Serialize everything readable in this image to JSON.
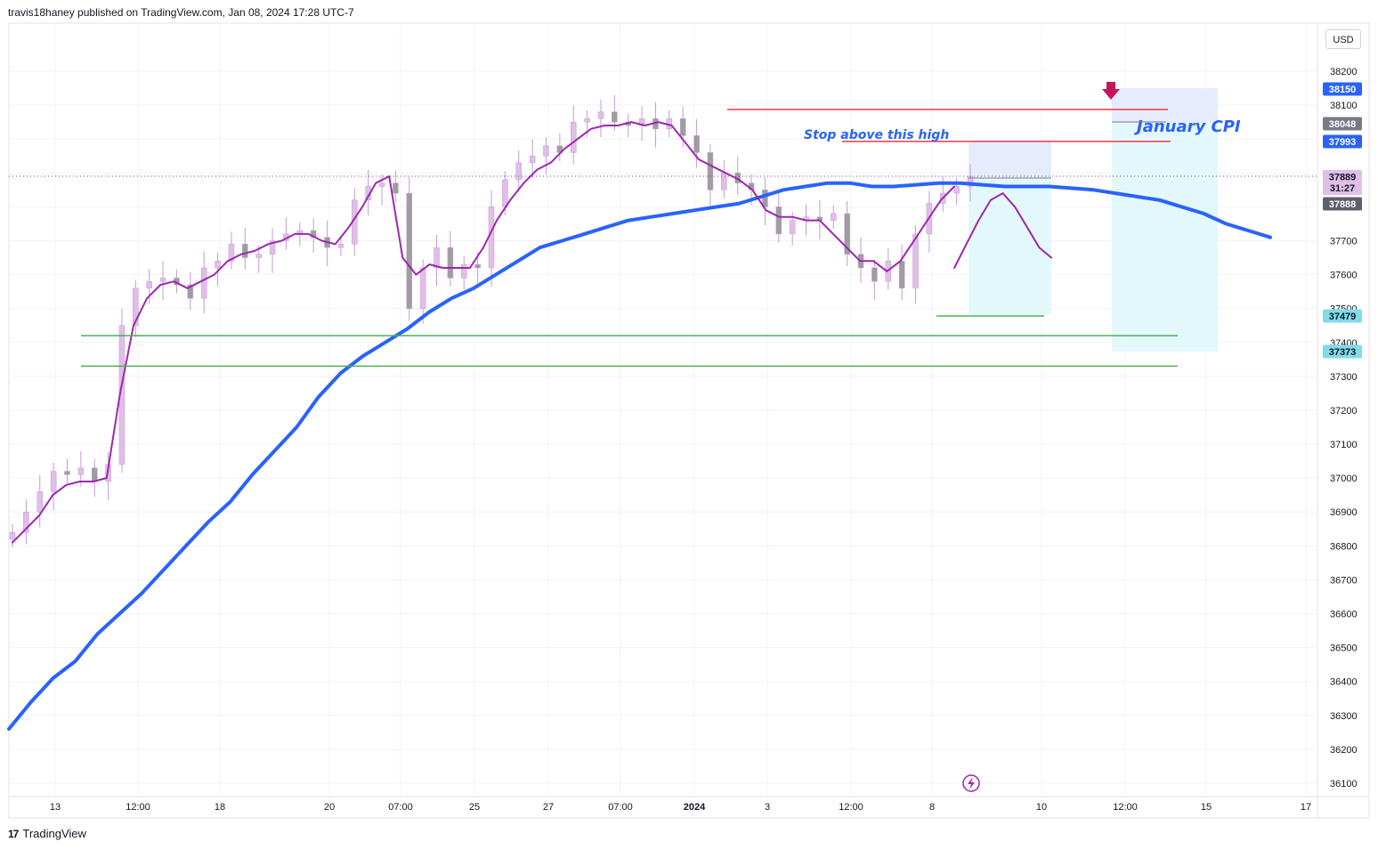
{
  "header": {
    "text": "travis18haney published on TradingView.com, Jan 08, 2024 17:28 UTC-7"
  },
  "currency_button": "USD",
  "footer": {
    "logo_mark": "17",
    "brand": "TradingView"
  },
  "annotations": {
    "stop_text": "Stop above this high",
    "event_text": "January CPI"
  },
  "colors": {
    "sma_blue": "#2962ff",
    "ema_purple": "#9c27b0",
    "candle": "#c39bd3",
    "red_level": "#f23645",
    "green_level": "#4caf50",
    "projection_fill": "#e0f7fa",
    "stop_fill": "#e3eafd",
    "arrow": "#c2185b"
  },
  "chart_data": {
    "type": "line",
    "title": "",
    "xlabel": "",
    "ylabel": "",
    "ylim": [
      36050,
      38270
    ],
    "y_ticks": [
      38200,
      38100,
      38000,
      37900,
      37800,
      37700,
      37600,
      37500,
      37400,
      37300,
      37200,
      37100,
      37000,
      36900,
      36800,
      36700,
      36600,
      36500,
      36400,
      36300,
      36200,
      36100
    ],
    "x_ticks": [
      {
        "label": "13",
        "bold": false
      },
      {
        "label": "12:00",
        "bold": false
      },
      {
        "label": "18",
        "bold": false
      },
      {
        "label": "20",
        "bold": false
      },
      {
        "label": "07:00",
        "bold": false
      },
      {
        "label": "25",
        "bold": false
      },
      {
        "label": "27",
        "bold": false
      },
      {
        "label": "07:00",
        "bold": false
      },
      {
        "label": "2024",
        "bold": true
      },
      {
        "label": "3",
        "bold": false
      },
      {
        "label": "12:00",
        "bold": false
      },
      {
        "label": "8",
        "bold": false
      },
      {
        "label": "10",
        "bold": false
      },
      {
        "label": "12:00",
        "bold": false
      },
      {
        "label": "15",
        "bold": false
      },
      {
        "label": "17",
        "bold": false
      }
    ],
    "price_badges": [
      {
        "value": "38150",
        "kind": "blue"
      },
      {
        "value": "38048",
        "kind": "gray"
      },
      {
        "value": "37993",
        "kind": "blue"
      },
      {
        "value": "37889",
        "kind": "current",
        "sub": "31:27"
      },
      {
        "value": "37888",
        "kind": "dark"
      },
      {
        "value": "37479",
        "kind": "teal"
      },
      {
        "value": "37373",
        "kind": "teal"
      }
    ],
    "series": [
      {
        "name": "",
        "kind": "price_close",
        "values": [
          36840,
          36900,
          36960,
          37020,
          37010,
          37030,
          36990,
          37040,
          37450,
          37560,
          37580,
          37590,
          37570,
          37530,
          37620,
          37640,
          37690,
          37650,
          37660,
          37700,
          37720,
          37730,
          37710,
          37680,
          37690,
          37820,
          37860,
          37870,
          37840,
          37500,
          37620,
          37680,
          37590,
          37630,
          37620,
          37800,
          37880,
          37930,
          37950,
          37980,
          37960,
          38050,
          38060,
          38080,
          38050,
          38040,
          38060,
          38030,
          38060,
          38010,
          37960,
          37850,
          37900,
          37870,
          37850,
          37800,
          37720,
          37760,
          37770,
          37760,
          37780,
          37660,
          37620,
          37580,
          37640,
          37560,
          37720,
          37810,
          37840,
          37860,
          37889
        ]
      },
      {
        "name": "",
        "kind": "ema_short",
        "values": [
          36810,
          36850,
          36890,
          36950,
          36980,
          36990,
          36990,
          37000,
          37250,
          37450,
          37530,
          37570,
          37580,
          37560,
          37580,
          37600,
          37640,
          37660,
          37670,
          37690,
          37700,
          37720,
          37720,
          37700,
          37690,
          37740,
          37800,
          37870,
          37890,
          37650,
          37600,
          37630,
          37620,
          37620,
          37620,
          37680,
          37760,
          37820,
          37870,
          37910,
          37930,
          37970,
          38000,
          38030,
          38040,
          38040,
          38050,
          38040,
          38050,
          38040,
          37990,
          37940,
          37920,
          37900,
          37880,
          37850,
          37790,
          37770,
          37770,
          37760,
          37760,
          37720,
          37680,
          37640,
          37640,
          37610,
          37640,
          37700,
          37760,
          37820,
          37860
        ]
      },
      {
        "name": "",
        "kind": "sma_long",
        "values": [
          36260,
          36340,
          36410,
          36460,
          36540,
          36600,
          36660,
          36730,
          36800,
          36870,
          36930,
          37010,
          37080,
          37150,
          37240,
          37310,
          37360,
          37400,
          37440,
          37490,
          37530,
          37560,
          37600,
          37640,
          37680,
          37700,
          37720,
          37740,
          37760,
          37770,
          37780,
          37790,
          37800,
          37810,
          37830,
          37850,
          37860,
          37870,
          37870,
          37860,
          37860,
          37865,
          37870,
          37870,
          37865,
          37860,
          37860,
          37860,
          37855,
          37850,
          37840,
          37830,
          37820,
          37800,
          37780,
          37750,
          37730,
          37710
        ]
      },
      {
        "name": "",
        "kind": "projection",
        "values": [
          37620,
          37690,
          37760,
          37820,
          37840,
          37800,
          37740,
          37680,
          37650
        ]
      }
    ],
    "levels": [
      {
        "kind": "red",
        "value": 38087
      },
      {
        "kind": "red",
        "value": 37993
      },
      {
        "kind": "green",
        "value": 37420
      },
      {
        "kind": "green",
        "value": 37330
      },
      {
        "kind": "green",
        "value": 37478
      }
    ],
    "grid": true,
    "legend": "none"
  }
}
